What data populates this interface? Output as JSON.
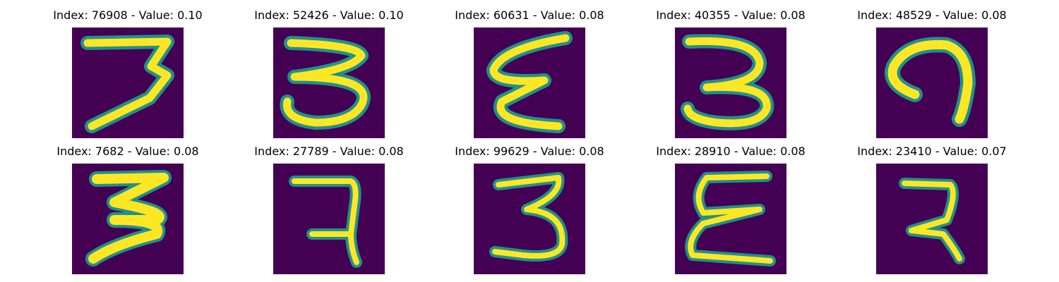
{
  "colors": {
    "background": "#440154",
    "mid": "#21918c",
    "high": "#fde725"
  },
  "panels": [
    {
      "title": "Index: 76908 - Value: 0.10",
      "glyph": "3"
    },
    {
      "title": "Index: 52426 - Value: 0.10",
      "glyph": "3"
    },
    {
      "title": "Index: 60631 - Value: 0.08",
      "glyph": "ε"
    },
    {
      "title": "Index: 40355 - Value: 0.08",
      "glyph": "3"
    },
    {
      "title": "Index: 48529 - Value: 0.08",
      "glyph": "ɑ"
    },
    {
      "title": "Index: 7682 - Value: 0.08",
      "glyph": "3"
    },
    {
      "title": "Index: 27789 - Value: 0.08",
      "glyph": "7"
    },
    {
      "title": "Index: 99629 - Value: 0.08",
      "glyph": "3"
    },
    {
      "title": "Index: 28910 - Value: 0.08",
      "glyph": "ε"
    },
    {
      "title": "Index: 23410 - Value: 0.07",
      "glyph": "2"
    }
  ]
}
